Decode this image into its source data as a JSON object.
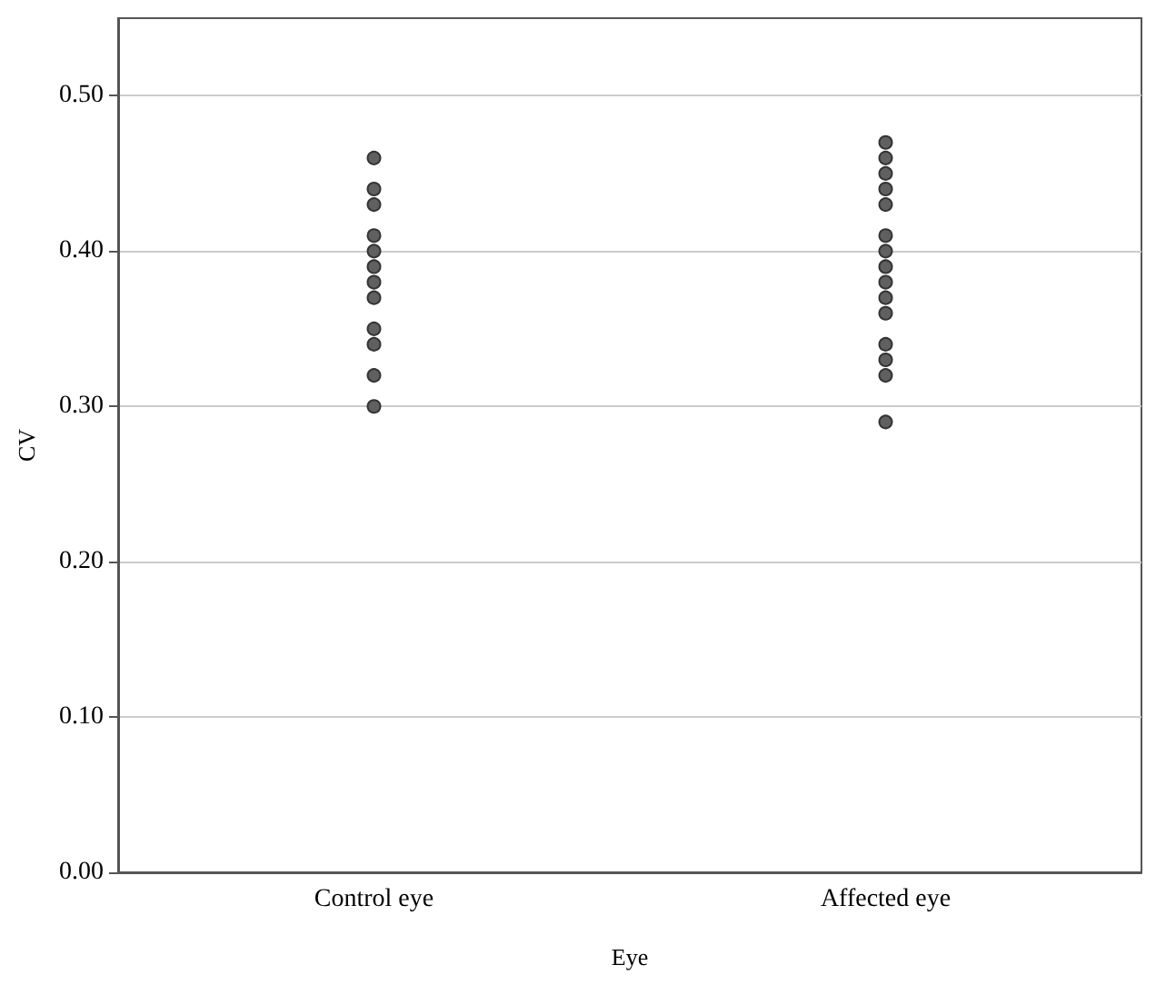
{
  "chart_data": {
    "type": "scatter",
    "xlabel": "Eye",
    "ylabel": "CV",
    "categories": [
      "Control eye",
      "Affected eye"
    ],
    "series": [
      {
        "color": "#606060",
        "x": [
          "Control eye",
          "Control eye",
          "Control eye",
          "Control eye",
          "Control eye",
          "Control eye",
          "Control eye",
          "Control eye",
          "Control eye",
          "Control eye",
          "Control eye",
          "Control eye",
          "Affected eye",
          "Affected eye",
          "Affected eye",
          "Affected eye",
          "Affected eye",
          "Affected eye",
          "Affected eye",
          "Affected eye",
          "Affected eye",
          "Affected eye",
          "Affected eye",
          "Affected eye",
          "Affected eye",
          "Affected eye",
          "Affected eye"
        ],
        "values": [
          0.46,
          0.44,
          0.43,
          0.41,
          0.4,
          0.39,
          0.38,
          0.37,
          0.35,
          0.34,
          0.32,
          0.3,
          0.47,
          0.46,
          0.45,
          0.44,
          0.43,
          0.41,
          0.4,
          0.39,
          0.38,
          0.37,
          0.36,
          0.34,
          0.33,
          0.32,
          0.29
        ]
      }
    ],
    "ylim": [
      0,
      0.55
    ],
    "yticks": [
      {
        "value": 0,
        "label": "0.00"
      },
      {
        "value": 0.1,
        "label": "0.10"
      },
      {
        "value": 0.2,
        "label": "0.20"
      },
      {
        "value": 0.3,
        "label": "0.30"
      },
      {
        "value": 0.4,
        "label": "0.40"
      },
      {
        "value": 0.5,
        "label": "0.50"
      }
    ],
    "grid": true,
    "marker": "circle"
  }
}
